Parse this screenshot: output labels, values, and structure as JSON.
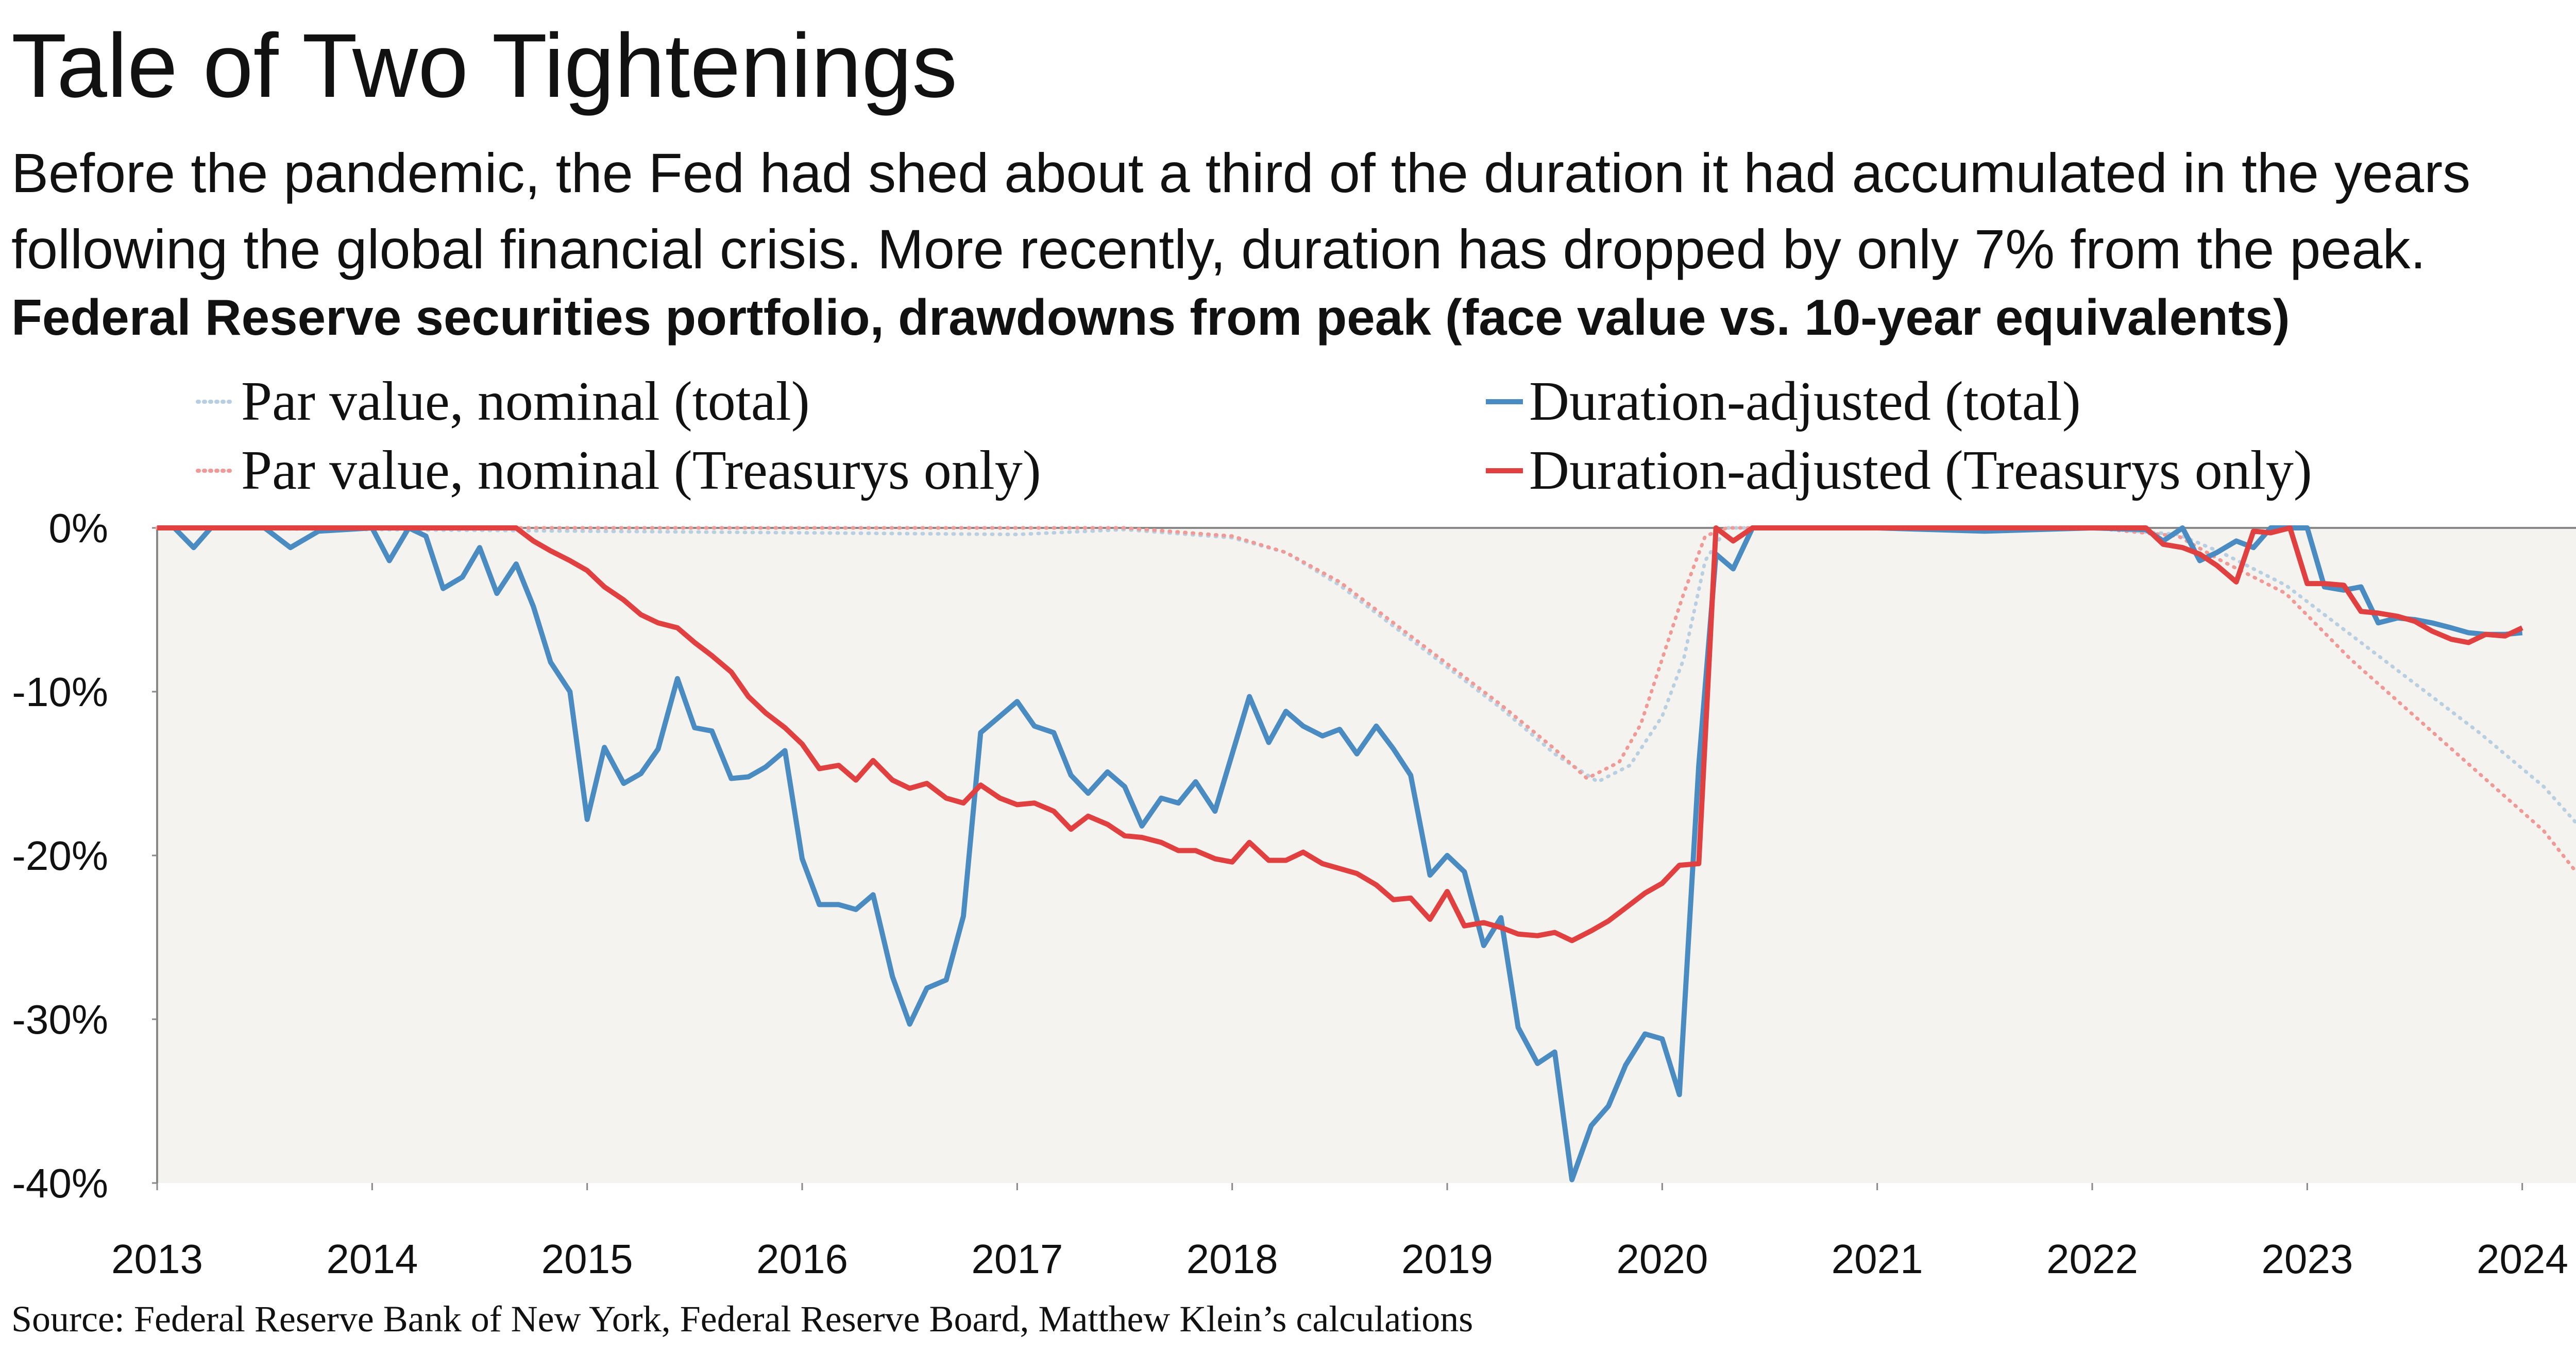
{
  "title": "Tale of Two Tightenings",
  "subtitle": "Before the pandemic, the Fed had shed about a third of the duration it had accumulated in the years following the global financial crisis. More recently, duration has dropped by only 7% from the peak.",
  "chart_heading": "Federal Reserve securities portfolio, drawdowns from peak (face value vs. 10-year equivalents)",
  "source": "Source: Federal Reserve Bank of New York, Federal Reserve Board, Matthew Klein’s calculations",
  "colors": {
    "blue": "#4a8cc2",
    "red": "#e0403f",
    "light_blue": "#b7cfe0",
    "light_red": "#ef9a96",
    "plot_bg": "#f5f3ef",
    "axis": "#888888"
  },
  "chart_data": {
    "type": "line",
    "title": "Federal Reserve securities portfolio, drawdowns from peak (face value vs. 10-year equivalents)",
    "xlabel": "",
    "ylabel": "",
    "xlim": [
      2013,
      2024.25
    ],
    "ylim": [
      -40,
      0
    ],
    "x_ticks": [
      2013,
      2014,
      2015,
      2016,
      2017,
      2018,
      2019,
      2020,
      2021,
      2022,
      2023,
      2024
    ],
    "x_tick_labels": [
      "2013",
      "2014",
      "2015",
      "2016",
      "2017",
      "2018",
      "2019",
      "2020",
      "2021",
      "2022",
      "2023",
      "2024"
    ],
    "y_ticks": [
      0,
      -10,
      -20,
      -30,
      -40
    ],
    "y_tick_labels": [
      "0%",
      "-10%",
      "-20%",
      "-30%",
      "-40%"
    ],
    "grid": false,
    "legend_position": "top",
    "series": [
      {
        "name": "Par value, nominal (total)",
        "style": "dotted",
        "color": "#b7cfe0",
        "points": [
          [
            2013.0,
            0
          ],
          [
            2016.0,
            -0.3
          ],
          [
            2017.0,
            -0.4
          ],
          [
            2017.5,
            -0.1
          ],
          [
            2018.0,
            -0.6
          ],
          [
            2018.25,
            -1.5
          ],
          [
            2018.5,
            -3.5
          ],
          [
            2018.75,
            -6
          ],
          [
            2019.0,
            -8.5
          ],
          [
            2019.25,
            -11
          ],
          [
            2019.5,
            -13.8
          ],
          [
            2019.7,
            -15.5
          ],
          [
            2019.85,
            -14.5
          ],
          [
            2020.0,
            -11.5
          ],
          [
            2020.1,
            -8
          ],
          [
            2020.2,
            -2
          ],
          [
            2020.3,
            0
          ],
          [
            2022.0,
            0
          ],
          [
            2022.4,
            -0.4
          ],
          [
            2022.6,
            -1.5
          ],
          [
            2022.9,
            -3.5
          ],
          [
            2023.2,
            -6.5
          ],
          [
            2023.5,
            -9.5
          ],
          [
            2023.8,
            -12.5
          ],
          [
            2024.1,
            -15.8
          ],
          [
            2024.25,
            -18
          ]
        ]
      },
      {
        "name": "Par value, nominal (Treasurys only)",
        "style": "dotted",
        "color": "#ef9a96",
        "points": [
          [
            2013.0,
            0
          ],
          [
            2016.0,
            0
          ],
          [
            2017.0,
            0
          ],
          [
            2017.5,
            0
          ],
          [
            2018.0,
            -0.5
          ],
          [
            2018.25,
            -1.5
          ],
          [
            2018.5,
            -3.3
          ],
          [
            2018.75,
            -5.8
          ],
          [
            2019.0,
            -8.3
          ],
          [
            2019.25,
            -10.8
          ],
          [
            2019.5,
            -13.5
          ],
          [
            2019.65,
            -15.3
          ],
          [
            2019.8,
            -14.3
          ],
          [
            2019.9,
            -12
          ],
          [
            2020.0,
            -8
          ],
          [
            2020.1,
            -4
          ],
          [
            2020.2,
            -0.5
          ],
          [
            2020.3,
            0
          ],
          [
            2022.0,
            0
          ],
          [
            2022.4,
            -0.5
          ],
          [
            2022.6,
            -2
          ],
          [
            2022.9,
            -4
          ],
          [
            2023.2,
            -8
          ],
          [
            2023.5,
            -11.5
          ],
          [
            2023.8,
            -15
          ],
          [
            2024.1,
            -18.5
          ],
          [
            2024.25,
            -21
          ]
        ]
      },
      {
        "name": "Duration-adjusted (total)",
        "style": "solid",
        "color": "#4a8cc2",
        "points": [
          [
            2013.0,
            0
          ],
          [
            2013.08,
            0
          ],
          [
            2013.17,
            -1.2
          ],
          [
            2013.25,
            0
          ],
          [
            2013.5,
            0
          ],
          [
            2013.62,
            -1.2
          ],
          [
            2013.75,
            -0.2
          ],
          [
            2014.0,
            0
          ],
          [
            2014.08,
            -2.0
          ],
          [
            2014.17,
            0
          ],
          [
            2014.25,
            -0.5
          ],
          [
            2014.33,
            -3.7
          ],
          [
            2014.42,
            -3.0
          ],
          [
            2014.5,
            -1.2
          ],
          [
            2014.58,
            -4.0
          ],
          [
            2014.67,
            -2.2
          ],
          [
            2014.75,
            -4.8
          ],
          [
            2014.83,
            -8.2
          ],
          [
            2014.92,
            -10.0
          ],
          [
            2015.0,
            -17.8
          ],
          [
            2015.08,
            -13.4
          ],
          [
            2015.17,
            -15.6
          ],
          [
            2015.25,
            -15.0
          ],
          [
            2015.33,
            -13.5
          ],
          [
            2015.42,
            -9.2
          ],
          [
            2015.5,
            -12.2
          ],
          [
            2015.58,
            -12.4
          ],
          [
            2015.67,
            -15.3
          ],
          [
            2015.75,
            -15.2
          ],
          [
            2015.83,
            -14.6
          ],
          [
            2015.92,
            -13.6
          ],
          [
            2016.0,
            -20.2
          ],
          [
            2016.08,
            -23.0
          ],
          [
            2016.17,
            -23.0
          ],
          [
            2016.25,
            -23.3
          ],
          [
            2016.33,
            -22.4
          ],
          [
            2016.42,
            -27.4
          ],
          [
            2016.5,
            -30.3
          ],
          [
            2016.58,
            -28.1
          ],
          [
            2016.67,
            -27.6
          ],
          [
            2016.75,
            -23.7
          ],
          [
            2016.83,
            -12.5
          ],
          [
            2016.92,
            -11.5
          ],
          [
            2017.0,
            -10.6
          ],
          [
            2017.08,
            -12.1
          ],
          [
            2017.17,
            -12.5
          ],
          [
            2017.25,
            -15.1
          ],
          [
            2017.33,
            -16.2
          ],
          [
            2017.42,
            -14.9
          ],
          [
            2017.5,
            -15.8
          ],
          [
            2017.58,
            -18.2
          ],
          [
            2017.67,
            -16.5
          ],
          [
            2017.75,
            -16.8
          ],
          [
            2017.83,
            -15.5
          ],
          [
            2017.92,
            -17.3
          ],
          [
            2018.0,
            -13.8
          ],
          [
            2018.08,
            -10.3
          ],
          [
            2018.17,
            -13.1
          ],
          [
            2018.25,
            -11.2
          ],
          [
            2018.33,
            -12.1
          ],
          [
            2018.42,
            -12.7
          ],
          [
            2018.5,
            -12.3
          ],
          [
            2018.58,
            -13.8
          ],
          [
            2018.67,
            -12.1
          ],
          [
            2018.75,
            -13.5
          ],
          [
            2018.83,
            -15.1
          ],
          [
            2018.92,
            -21.2
          ],
          [
            2019.0,
            -20.0
          ],
          [
            2019.08,
            -21.0
          ],
          [
            2019.17,
            -25.5
          ],
          [
            2019.25,
            -23.8
          ],
          [
            2019.33,
            -30.5
          ],
          [
            2019.42,
            -32.7
          ],
          [
            2019.5,
            -32.0
          ],
          [
            2019.58,
            -39.8
          ],
          [
            2019.67,
            -36.5
          ],
          [
            2019.75,
            -35.3
          ],
          [
            2019.83,
            -32.8
          ],
          [
            2019.92,
            -30.9
          ],
          [
            2020.0,
            -31.2
          ],
          [
            2020.08,
            -34.6
          ],
          [
            2020.17,
            -14.5
          ],
          [
            2020.25,
            -1.6
          ],
          [
            2020.33,
            -2.5
          ],
          [
            2020.42,
            0
          ],
          [
            2021.0,
            0
          ],
          [
            2021.5,
            -0.2
          ],
          [
            2022.0,
            0
          ],
          [
            2022.25,
            -0.1
          ],
          [
            2022.33,
            -0.8
          ],
          [
            2022.42,
            0
          ],
          [
            2022.5,
            -2.0
          ],
          [
            2022.58,
            -1.5
          ],
          [
            2022.67,
            -0.8
          ],
          [
            2022.75,
            -1.2
          ],
          [
            2022.83,
            0
          ],
          [
            2023.0,
            0
          ],
          [
            2023.08,
            -3.6
          ],
          [
            2023.17,
            -3.8
          ],
          [
            2023.25,
            -3.6
          ],
          [
            2023.33,
            -5.8
          ],
          [
            2023.42,
            -5.5
          ],
          [
            2023.5,
            -5.6
          ],
          [
            2023.58,
            -5.8
          ],
          [
            2023.67,
            -6.1
          ],
          [
            2023.75,
            -6.4
          ],
          [
            2023.83,
            -6.5
          ],
          [
            2023.92,
            -6.5
          ],
          [
            2024.0,
            -6.4
          ]
        ]
      },
      {
        "name": "Duration-adjusted (Treasurys only)",
        "style": "solid",
        "color": "#e0403f",
        "points": [
          [
            2013.0,
            0
          ],
          [
            2014.0,
            0
          ],
          [
            2014.67,
            0
          ],
          [
            2014.75,
            -0.8
          ],
          [
            2014.83,
            -1.4
          ],
          [
            2014.92,
            -2.0
          ],
          [
            2015.0,
            -2.6
          ],
          [
            2015.08,
            -3.6
          ],
          [
            2015.17,
            -4.4
          ],
          [
            2015.25,
            -5.3
          ],
          [
            2015.33,
            -5.8
          ],
          [
            2015.42,
            -6.1
          ],
          [
            2015.5,
            -7.0
          ],
          [
            2015.58,
            -7.8
          ],
          [
            2015.67,
            -8.8
          ],
          [
            2015.75,
            -10.3
          ],
          [
            2015.83,
            -11.3
          ],
          [
            2015.92,
            -12.2
          ],
          [
            2016.0,
            -13.2
          ],
          [
            2016.08,
            -14.7
          ],
          [
            2016.17,
            -14.5
          ],
          [
            2016.25,
            -15.4
          ],
          [
            2016.33,
            -14.2
          ],
          [
            2016.42,
            -15.4
          ],
          [
            2016.5,
            -15.9
          ],
          [
            2016.58,
            -15.6
          ],
          [
            2016.67,
            -16.5
          ],
          [
            2016.75,
            -16.8
          ],
          [
            2016.83,
            -15.7
          ],
          [
            2016.92,
            -16.5
          ],
          [
            2017.0,
            -16.9
          ],
          [
            2017.08,
            -16.8
          ],
          [
            2017.17,
            -17.3
          ],
          [
            2017.25,
            -18.4
          ],
          [
            2017.33,
            -17.6
          ],
          [
            2017.42,
            -18.1
          ],
          [
            2017.5,
            -18.8
          ],
          [
            2017.58,
            -18.9
          ],
          [
            2017.67,
            -19.2
          ],
          [
            2017.75,
            -19.7
          ],
          [
            2017.83,
            -19.7
          ],
          [
            2017.92,
            -20.2
          ],
          [
            2018.0,
            -20.4
          ],
          [
            2018.08,
            -19.2
          ],
          [
            2018.17,
            -20.3
          ],
          [
            2018.25,
            -20.3
          ],
          [
            2018.33,
            -19.8
          ],
          [
            2018.42,
            -20.5
          ],
          [
            2018.5,
            -20.8
          ],
          [
            2018.58,
            -21.1
          ],
          [
            2018.67,
            -21.8
          ],
          [
            2018.75,
            -22.7
          ],
          [
            2018.83,
            -22.6
          ],
          [
            2018.92,
            -23.9
          ],
          [
            2019.0,
            -22.2
          ],
          [
            2019.08,
            -24.3
          ],
          [
            2019.17,
            -24.1
          ],
          [
            2019.25,
            -24.4
          ],
          [
            2019.33,
            -24.8
          ],
          [
            2019.42,
            -24.9
          ],
          [
            2019.5,
            -24.7
          ],
          [
            2019.58,
            -25.2
          ],
          [
            2019.67,
            -24.6
          ],
          [
            2019.75,
            -24.0
          ],
          [
            2019.83,
            -23.2
          ],
          [
            2019.92,
            -22.3
          ],
          [
            2020.0,
            -21.7
          ],
          [
            2020.08,
            -20.6
          ],
          [
            2020.17,
            -20.5
          ],
          [
            2020.25,
            0
          ],
          [
            2020.33,
            -0.8
          ],
          [
            2020.42,
            0
          ],
          [
            2021.0,
            0
          ],
          [
            2022.0,
            0
          ],
          [
            2022.25,
            0
          ],
          [
            2022.33,
            -1.0
          ],
          [
            2022.42,
            -1.2
          ],
          [
            2022.5,
            -1.6
          ],
          [
            2022.58,
            -2.3
          ],
          [
            2022.67,
            -3.3
          ],
          [
            2022.75,
            -0.2
          ],
          [
            2022.83,
            -0.3
          ],
          [
            2022.92,
            0
          ],
          [
            2023.0,
            -3.4
          ],
          [
            2023.08,
            -3.4
          ],
          [
            2023.17,
            -3.5
          ],
          [
            2023.25,
            -5.1
          ],
          [
            2023.33,
            -5.2
          ],
          [
            2023.42,
            -5.4
          ],
          [
            2023.5,
            -5.7
          ],
          [
            2023.58,
            -6.3
          ],
          [
            2023.67,
            -6.8
          ],
          [
            2023.75,
            -7.0
          ],
          [
            2023.83,
            -6.5
          ],
          [
            2023.92,
            -6.6
          ],
          [
            2024.0,
            -6.1
          ]
        ]
      }
    ]
  }
}
